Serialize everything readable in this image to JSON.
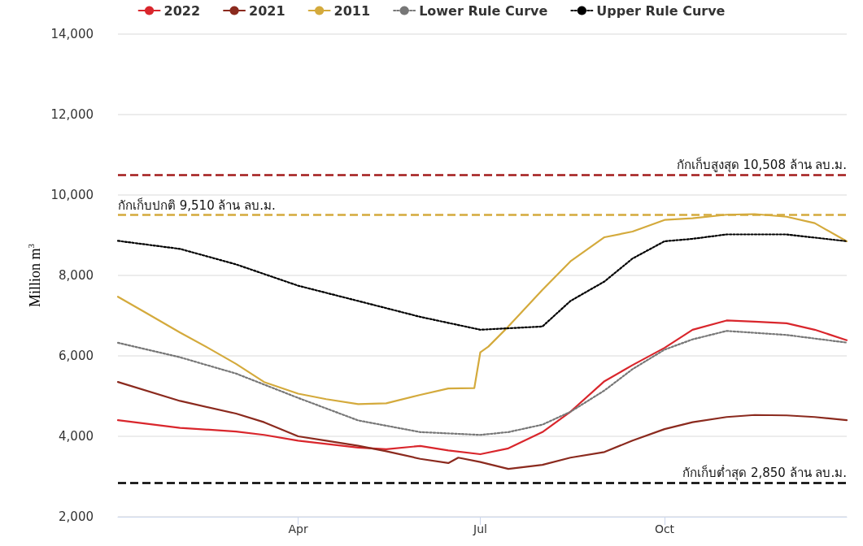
{
  "chart_data": {
    "type": "line",
    "ylabel": "Million m$^{3}$",
    "xlim": [
      "--01-01",
      "--12-31"
    ],
    "xticks": [
      {
        "value": "--04-01",
        "label": "Apr"
      },
      {
        "value": "--07-01",
        "label": "Jul"
      },
      {
        "value": "--10-01",
        "label": "Oct"
      }
    ],
    "ylim": [
      2000,
      14000
    ],
    "yticks": [
      {
        "value": 2000,
        "label": "2,000"
      },
      {
        "value": 4000,
        "label": "4,000"
      },
      {
        "value": 6000,
        "label": "6,000"
      },
      {
        "value": 8000,
        "label": "8,000"
      },
      {
        "value": 10000,
        "label": "10,000"
      },
      {
        "value": 12000,
        "label": "12,000"
      },
      {
        "value": 14000,
        "label": "14,000"
      }
    ],
    "grid": "y",
    "legend": "top",
    "marker": "none",
    "series": [
      {
        "name": "2022",
        "color": "#d9262c",
        "line_style": "solid",
        "x": [
          "--01-01",
          "--02-01",
          "--03-01",
          "--03-15",
          "--04-01",
          "--05-01",
          "--05-15",
          "--06-01",
          "--06-15",
          "--07-01",
          "--07-15",
          "--08-01",
          "--08-15",
          "--09-01",
          "--09-15",
          "--10-01",
          "--10-15",
          "--11-01",
          "--11-15",
          "--12-01",
          "--12-15",
          "--12-31"
        ],
        "values": [
          4400,
          4210,
          4120,
          4035,
          3890,
          3720,
          3680,
          3760,
          3650,
          3555,
          3700,
          4105,
          4610,
          5370,
          5770,
          6200,
          6650,
          6880,
          6850,
          6810,
          6650,
          6390
        ]
      },
      {
        "name": "2021",
        "color": "#8b2a1e",
        "line_style": "solid",
        "x": [
          "--01-01",
          "--02-01",
          "--03-01",
          "--03-15",
          "--04-01",
          "--04-15",
          "--05-01",
          "--05-15",
          "--06-01",
          "--06-15",
          "--06-20",
          "--07-01",
          "--07-15",
          "--08-01",
          "--08-15",
          "--09-01",
          "--09-15",
          "--10-01",
          "--10-15",
          "--11-01",
          "--11-15",
          "--12-01",
          "--12-15",
          "--12-31"
        ],
        "values": [
          5350,
          4880,
          4565,
          4350,
          4000,
          3890,
          3765,
          3630,
          3440,
          3335,
          3470,
          3360,
          3190,
          3290,
          3470,
          3610,
          3895,
          4180,
          4350,
          4480,
          4530,
          4520,
          4480,
          4400
        ]
      },
      {
        "name": "2011",
        "color": "#d4aa3c",
        "line_style": "solid",
        "x": [
          "--01-01",
          "--01-15",
          "--02-01",
          "--02-15",
          "--03-01",
          "--03-15",
          "--04-01",
          "--04-15",
          "--05-01",
          "--05-15",
          "--06-01",
          "--06-15",
          "--06-28",
          "--07-01",
          "--07-05",
          "--07-15",
          "--08-01",
          "--08-15",
          "--09-01",
          "--09-15",
          "--10-01",
          "--10-15",
          "--11-01",
          "--11-15",
          "--12-01",
          "--12-15",
          "--12-31"
        ],
        "values": [
          7470,
          7070,
          6580,
          6200,
          5800,
          5350,
          5060,
          4925,
          4800,
          4820,
          5030,
          5190,
          5200,
          6090,
          6230,
          6730,
          7640,
          8350,
          8950,
          9090,
          9380,
          9420,
          9510,
          9525,
          9460,
          9300,
          8850
        ]
      },
      {
        "name": "Lower Rule Curve",
        "color": "#777777",
        "line_style": "dotted",
        "x": [
          "--01-01",
          "--02-01",
          "--03-01",
          "--04-01",
          "--05-01",
          "--06-01",
          "--07-01",
          "--07-15",
          "--08-01",
          "--08-15",
          "--09-01",
          "--09-15",
          "--10-01",
          "--10-15",
          "--11-01",
          "--12-01",
          "--12-31"
        ],
        "values": [
          6325,
          5965,
          5560,
          4955,
          4395,
          4105,
          4035,
          4105,
          4290,
          4610,
          5140,
          5670,
          6155,
          6410,
          6620,
          6520,
          6330
        ]
      },
      {
        "name": "Upper Rule Curve",
        "color": "#000000",
        "line_style": "dotted",
        "x": [
          "--01-01",
          "--02-01",
          "--03-01",
          "--04-01",
          "--05-01",
          "--06-01",
          "--07-01",
          "--08-01",
          "--08-15",
          "--09-01",
          "--09-15",
          "--10-01",
          "--10-15",
          "--11-01",
          "--12-01",
          "--12-31"
        ],
        "values": [
          8860,
          8660,
          8275,
          7745,
          7365,
          6970,
          6650,
          6730,
          7365,
          7850,
          8420,
          8850,
          8910,
          9020,
          9020,
          8850
        ]
      }
    ],
    "ref_lines": [
      {
        "axis": "y",
        "value": 10508,
        "label": "กักเก็บสูงสุด 10,508 ล้าน ลบ.ม.",
        "color": "#a31b1b",
        "line_style": "dashed"
      },
      {
        "axis": "y",
        "value": 9510,
        "label": "กักเก็บปกติ 9,510 ล้าน ลบ.ม.",
        "color": "#d4aa3c",
        "line_style": "dashed"
      },
      {
        "axis": "y",
        "value": 2850,
        "label": "กักเก็บต่ำสุด 2,850 ล้าน ลบ.ม.",
        "color": "#000000",
        "line_style": "dashed"
      }
    ]
  }
}
